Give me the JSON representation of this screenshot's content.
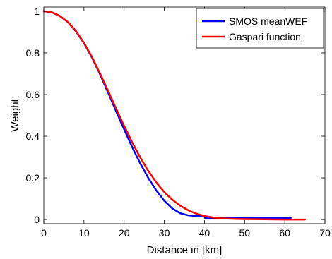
{
  "chart_data": {
    "type": "line",
    "title": "",
    "xlabel": "Distance in [km]",
    "ylabel": "Weight",
    "xlim": [
      0,
      70
    ],
    "ylim": [
      0,
      1
    ],
    "x_ticks": [
      0,
      10,
      20,
      30,
      40,
      50,
      60,
      70
    ],
    "y_ticks": [
      0,
      0.2,
      0.4,
      0.6,
      0.8,
      1
    ],
    "x_tick_labels": [
      "0",
      "10",
      "20",
      "30",
      "40",
      "50",
      "60",
      "70"
    ],
    "y_tick_labels": [
      "0",
      "0.2",
      "0.4",
      "0.6",
      "0.8",
      "1"
    ],
    "grid": false,
    "legend_position": "top-right",
    "series": [
      {
        "name": "SMOS meanWEF",
        "color": "#0000ff",
        "x": [
          0,
          2,
          4,
          6,
          8,
          10,
          12,
          14,
          16,
          18,
          20,
          22,
          24,
          26,
          28,
          30,
          32,
          34,
          36,
          38,
          39.5,
          40,
          40.1,
          45,
          50,
          55,
          61.5
        ],
        "y": [
          1.0,
          0.995,
          0.977,
          0.948,
          0.903,
          0.847,
          0.777,
          0.697,
          0.61,
          0.52,
          0.433,
          0.348,
          0.27,
          0.2,
          0.14,
          0.09,
          0.053,
          0.03,
          0.02,
          0.017,
          0.016,
          0.016,
          0.008,
          0.008,
          0.008,
          0.008,
          0.008
        ]
      },
      {
        "name": "Gaspari function",
        "color": "#ff0000",
        "x": [
          0,
          2,
          4,
          6,
          8,
          10,
          12,
          14,
          16,
          18,
          20,
          22,
          24,
          26,
          28,
          30,
          32,
          34,
          36,
          38,
          40,
          42,
          44,
          46,
          48,
          50,
          55,
          60,
          65
        ],
        "y": [
          1.0,
          0.995,
          0.977,
          0.948,
          0.905,
          0.848,
          0.78,
          0.701,
          0.618,
          0.533,
          0.45,
          0.371,
          0.298,
          0.234,
          0.178,
          0.132,
          0.095,
          0.066,
          0.044,
          0.028,
          0.017,
          0.01,
          0.006,
          0.004,
          0.003,
          0.002,
          0.001,
          0.0,
          0.0
        ]
      }
    ]
  }
}
